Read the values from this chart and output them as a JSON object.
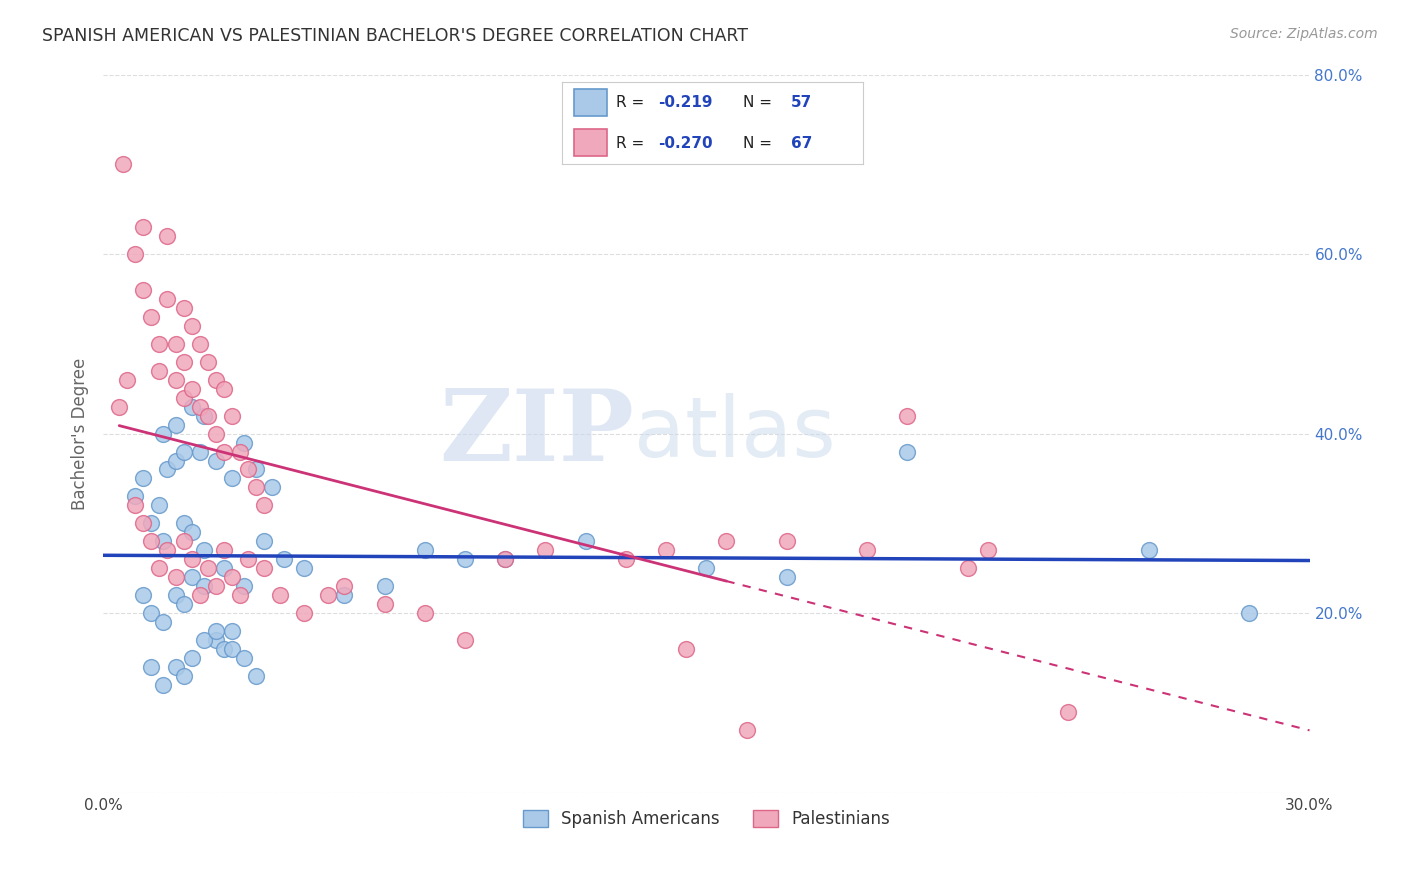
{
  "title": "SPANISH AMERICAN VS PALESTINIAN BACHELOR'S DEGREE CORRELATION CHART",
  "source": "Source: ZipAtlas.com",
  "ylabel": "Bachelor's Degree",
  "xlim": [
    0.0,
    0.3
  ],
  "ylim": [
    0.0,
    0.8
  ],
  "xtick_vals": [
    0.0,
    0.05,
    0.1,
    0.15,
    0.2,
    0.25,
    0.3
  ],
  "xtick_labels": [
    "0.0%",
    "",
    "",
    "",
    "",
    "",
    "30.0%"
  ],
  "ytick_vals": [
    0.0,
    0.2,
    0.4,
    0.6,
    0.8
  ],
  "ytick_labels": [
    "",
    "20.0%",
    "40.0%",
    "60.0%",
    "80.0%"
  ],
  "legend_label1": "Spanish Americans",
  "legend_label2": "Palestinians",
  "color_blue": "#aac9e8",
  "color_pink": "#f0a8bc",
  "color_blue_edge": "#6699cc",
  "color_pink_edge": "#dd6688",
  "color_blue_line": "#2244bb",
  "color_pink_line": "#cc3377",
  "watermark_zip": "ZIP",
  "watermark_atlas": "atlas",
  "background_color": "#ffffff",
  "grid_color": "#dddddd",
  "blue_scatter_x": [
    0.008,
    0.01,
    0.012,
    0.014,
    0.015,
    0.016,
    0.018,
    0.02,
    0.022,
    0.024,
    0.01,
    0.012,
    0.015,
    0.018,
    0.02,
    0.022,
    0.025,
    0.028,
    0.03,
    0.032,
    0.012,
    0.015,
    0.018,
    0.02,
    0.022,
    0.025,
    0.028,
    0.032,
    0.035,
    0.038,
    0.015,
    0.018,
    0.02,
    0.022,
    0.025,
    0.028,
    0.032,
    0.035,
    0.038,
    0.042,
    0.025,
    0.03,
    0.035,
    0.04,
    0.045,
    0.05,
    0.06,
    0.07,
    0.08,
    0.09,
    0.1,
    0.12,
    0.15,
    0.17,
    0.2,
    0.26,
    0.285
  ],
  "blue_scatter_y": [
    0.33,
    0.35,
    0.3,
    0.32,
    0.28,
    0.36,
    0.37,
    0.3,
    0.29,
    0.38,
    0.22,
    0.2,
    0.19,
    0.22,
    0.21,
    0.24,
    0.23,
    0.17,
    0.16,
    0.18,
    0.14,
    0.12,
    0.14,
    0.13,
    0.15,
    0.17,
    0.18,
    0.16,
    0.15,
    0.13,
    0.4,
    0.41,
    0.38,
    0.43,
    0.42,
    0.37,
    0.35,
    0.39,
    0.36,
    0.34,
    0.27,
    0.25,
    0.23,
    0.28,
    0.26,
    0.25,
    0.22,
    0.23,
    0.27,
    0.26,
    0.26,
    0.28,
    0.25,
    0.24,
    0.38,
    0.27,
    0.2
  ],
  "pink_scatter_x": [
    0.004,
    0.006,
    0.008,
    0.01,
    0.01,
    0.012,
    0.014,
    0.014,
    0.016,
    0.016,
    0.018,
    0.018,
    0.02,
    0.02,
    0.02,
    0.022,
    0.022,
    0.024,
    0.024,
    0.026,
    0.026,
    0.028,
    0.028,
    0.03,
    0.03,
    0.032,
    0.034,
    0.036,
    0.038,
    0.04,
    0.005,
    0.008,
    0.01,
    0.012,
    0.014,
    0.016,
    0.018,
    0.02,
    0.022,
    0.024,
    0.026,
    0.028,
    0.03,
    0.032,
    0.034,
    0.036,
    0.04,
    0.044,
    0.05,
    0.056,
    0.06,
    0.07,
    0.08,
    0.09,
    0.1,
    0.11,
    0.13,
    0.14,
    0.145,
    0.155,
    0.16,
    0.17,
    0.19,
    0.2,
    0.215,
    0.22,
    0.24
  ],
  "pink_scatter_y": [
    0.43,
    0.46,
    0.6,
    0.63,
    0.56,
    0.53,
    0.5,
    0.47,
    0.62,
    0.55,
    0.5,
    0.46,
    0.54,
    0.48,
    0.44,
    0.52,
    0.45,
    0.5,
    0.43,
    0.48,
    0.42,
    0.46,
    0.4,
    0.45,
    0.38,
    0.42,
    0.38,
    0.36,
    0.34,
    0.32,
    0.7,
    0.32,
    0.3,
    0.28,
    0.25,
    0.27,
    0.24,
    0.28,
    0.26,
    0.22,
    0.25,
    0.23,
    0.27,
    0.24,
    0.22,
    0.26,
    0.25,
    0.22,
    0.2,
    0.22,
    0.23,
    0.21,
    0.2,
    0.17,
    0.26,
    0.27,
    0.26,
    0.27,
    0.16,
    0.28,
    0.07,
    0.28,
    0.27,
    0.42,
    0.25,
    0.27,
    0.09
  ]
}
